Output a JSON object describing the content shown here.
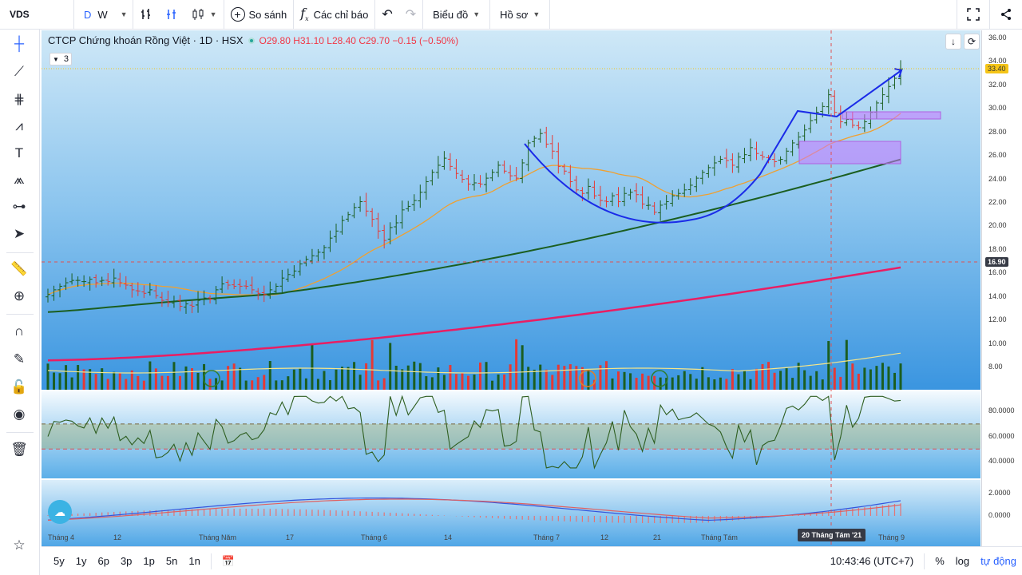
{
  "toolbar": {
    "symbol": "VDS",
    "interval_d": "D",
    "interval_w": "W",
    "compare": "So sánh",
    "indicators": "Các chỉ báo",
    "chart_menu": "Biểu đồ",
    "profile_menu": "Hồ sơ"
  },
  "legend": {
    "title": "CTCP Chứng khoán Rồng Việt · 1D · HSX",
    "open": "O29.80",
    "high": "H31.10",
    "low": "L28.40",
    "close": "C29.70",
    "change": "−0.15 (−0.50%)",
    "collapsed_count": "3"
  },
  "price_axis": {
    "ticks": [
      "36.00",
      "34.00",
      "32.00",
      "30.00",
      "28.00",
      "26.00",
      "24.00",
      "22.00",
      "20.00",
      "18.00",
      "16.00",
      "14.00",
      "12.00",
      "10.00",
      "8.00"
    ],
    "last_price": "33.40",
    "crosshair_price": "16.90"
  },
  "rsi_axis": {
    "ticks": [
      "80.0000",
      "60.0000",
      "40.0000"
    ]
  },
  "macd_axis": {
    "ticks": [
      "2.0000",
      "0.0000"
    ]
  },
  "time_axis": {
    "labels": [
      "Tháng 4",
      "12",
      "Tháng Năm",
      "17",
      "Tháng 6",
      "14",
      "Tháng 7",
      "12",
      "21",
      "Tháng Tám",
      "Tháng 9"
    ],
    "crosshair_date": "20 Tháng Tám '21"
  },
  "bottom": {
    "ranges": [
      "5y",
      "1y",
      "6p",
      "3p",
      "1p",
      "5n",
      "1n"
    ],
    "clock": "10:43:46 (UTC+7)",
    "percent": "%",
    "log": "log",
    "auto": "tự động"
  },
  "colors": {
    "up": "#1b5e20",
    "down": "#e53935",
    "accent": "#2962ff",
    "ma_long": "#e91e63",
    "ma_mid": "#1b5e20",
    "ma_short": "#f0a030"
  },
  "chart_data": {
    "type": "ohlc",
    "title": "CTCP Chứng khoán Rồng Việt · 1D · HSX",
    "ylim": [
      7,
      36.5
    ],
    "annotations": [
      "cup-and-handle drawing",
      "trend arrow",
      "highlight boxes"
    ],
    "closes": [
      14.2,
      14.6,
      14.9,
      15.2,
      15.4,
      15.4,
      15.3,
      15.5,
      15.2,
      15.4,
      15.3,
      15.6,
      15.2,
      15.0,
      14.6,
      14.5,
      14.3,
      14.6,
      14.1,
      13.7,
      13.5,
      13.6,
      13.2,
      13.4,
      13.2,
      13.7,
      13.9,
      13.8,
      14.6,
      15.1,
      15.0,
      14.9,
      14.9,
      14.9,
      14.6,
      14.3,
      14.2,
      14.6,
      14.9,
      15.6,
      15.9,
      16.2,
      16.8,
      17.2,
      17.5,
      17.8,
      18.2,
      19.0,
      19.6,
      20.5,
      21.0,
      21.6,
      22.1,
      21.3,
      20.6,
      19.6,
      18.8,
      19.9,
      20.3,
      21.4,
      21.7,
      22.2,
      22.9,
      23.8,
      24.6,
      25.2,
      25.8,
      25.1,
      24.5,
      24.0,
      23.6,
      23.7,
      23.6,
      24.1,
      24.6,
      25.2,
      24.7,
      24.3,
      24.1,
      25.4,
      27.1,
      27.5,
      27.9,
      27.0,
      26.4,
      25.1,
      24.7,
      23.8,
      23.1,
      22.8,
      23.4,
      22.6,
      22.2,
      22.1,
      22.6,
      22.1,
      22.8,
      22.9,
      22.7,
      21.9,
      21.8,
      21.2,
      21.8,
      22.1,
      22.6,
      22.8,
      23.1,
      23.5,
      24.1,
      24.6,
      25.0,
      25.4,
      25.7,
      25.6,
      25.2,
      25.9,
      26.1,
      26.7,
      26.2,
      25.9,
      25.7,
      25.5,
      25.7,
      26.4,
      27.1,
      27.6,
      28.2,
      29.0,
      29.7,
      30.2,
      31.2,
      29.7,
      28.9,
      29.1,
      28.6,
      28.4,
      28.9,
      29.7,
      30.5,
      31.2,
      31.9,
      32.6,
      33.4
    ]
  }
}
